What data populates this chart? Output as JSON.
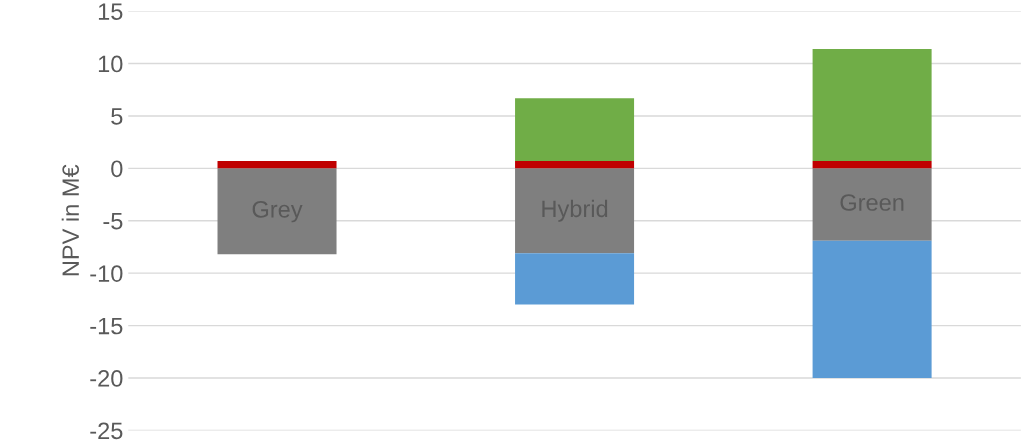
{
  "chart_data": {
    "type": "bar",
    "stacked": true,
    "ylabel": "NPV in M€",
    "categories": [
      "Grey",
      "Hybrid",
      "Green"
    ],
    "series": [
      {
        "color": "#7f7f7f",
        "values": [
          -8.2,
          -8.1,
          -6.9
        ]
      },
      {
        "color": "#5b9bd5",
        "values": [
          0,
          -4.9,
          -13.1
        ]
      },
      {
        "color": "#c00000",
        "values": [
          0.7,
          0.7,
          0.7
        ]
      },
      {
        "color": "#70ad47",
        "values": [
          0,
          6.0,
          10.7
        ]
      }
    ],
    "ylim": [
      -25,
      15
    ],
    "yticks": [
      -25,
      -20,
      -15,
      -10,
      -5,
      0,
      5,
      10,
      15
    ],
    "grid": "y",
    "legend": false
  }
}
